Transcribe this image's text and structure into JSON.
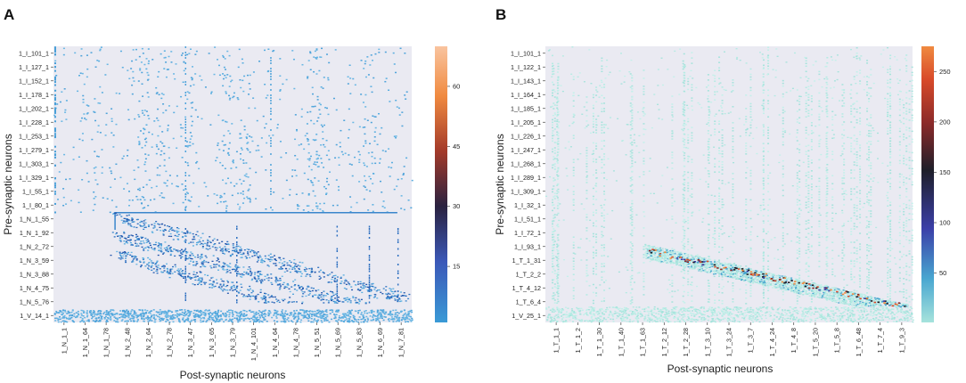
{
  "chart_data": [
    {
      "type": "heatmap",
      "panel_label": "A",
      "xlabel": "Post-synaptic neurons",
      "ylabel": "Pre-synaptic neurons",
      "y_ticks": [
        "1_I_101_1",
        "1_I_127_1",
        "1_I_152_1",
        "1_I_178_1",
        "1_I_202_1",
        "1_I_228_1",
        "1_I_253_1",
        "1_I_279_1",
        "1_I_303_1",
        "1_I_329_1",
        "1_I_55_1",
        "1_I_80_1",
        "1_N_1_55",
        "1_N_1_92",
        "1_N_2_72",
        "1_N_3_59",
        "1_N_3_88",
        "1_N_4_75",
        "1_N_5_76",
        "1_V_14_1"
      ],
      "x_ticks": [
        "1_N_1_1",
        "1_N_1_64",
        "1_N_1_78",
        "1_N_2_48",
        "1_N_2_64",
        "1_N_2_78",
        "1_N_3_47",
        "1_N_3_65",
        "1_N_3_79",
        "1_N_4_101",
        "1_N_4_64",
        "1_N_4_78",
        "1_N_5_51",
        "1_N_5_69",
        "1_N_5_83",
        "1_N_6_69",
        "1_N_7_81"
      ],
      "colorbar": {
        "ticks": [
          15,
          30,
          45,
          60
        ],
        "range": [
          1,
          70
        ],
        "colors": [
          "#3a9ad6",
          "#3b58b8",
          "#2a2240",
          "#a33a2a",
          "#f08a40",
          "#f9c49f"
        ]
      },
      "background": "#eaeaf2"
    },
    {
      "type": "heatmap",
      "panel_label": "B",
      "xlabel": "Post-synaptic neurons",
      "ylabel": "Pre-synaptic neurons",
      "y_ticks": [
        "1_I_101_1",
        "1_I_122_1",
        "1_I_143_1",
        "1_I_164_1",
        "1_I_185_1",
        "1_I_205_1",
        "1_I_226_1",
        "1_I_247_1",
        "1_I_268_1",
        "1_I_289_1",
        "1_I_309_1",
        "1_I_32_1",
        "1_I_51_1",
        "1_I_72_1",
        "1_I_93_1",
        "1_T_1_31",
        "1_T_2_2",
        "1_T_4_12",
        "1_T_6_4",
        "1_V_25_1"
      ],
      "x_ticks": [
        "1_T_1_1",
        "1_T_1_2",
        "1_T_1_30",
        "1_T_1_40",
        "1_T_1_63",
        "1_T_2_12",
        "1_T_2_28",
        "1_T_3_10",
        "1_T_3_24",
        "1_T_3_7",
        "1_T_4_24",
        "1_T_4_8",
        "1_T_5_20",
        "1_T_5_8",
        "1_T_6_48",
        "1_T_7_4",
        "1_T_9_3"
      ],
      "colorbar": {
        "ticks": [
          50,
          100,
          150,
          200,
          250
        ],
        "range": [
          1,
          275
        ],
        "colors": [
          "#a6e3dc",
          "#48a6d0",
          "#3b3fa8",
          "#1e1f2a",
          "#8a2a2a",
          "#d84a2a",
          "#f08a40"
        ]
      },
      "background": "#eaeaf2"
    }
  ]
}
